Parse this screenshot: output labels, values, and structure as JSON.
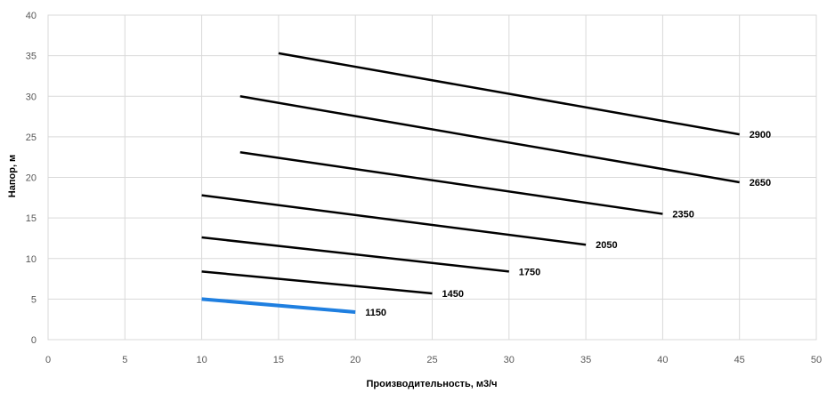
{
  "chart_data": {
    "type": "line",
    "xlabel": "Производительность, м3/ч",
    "ylabel": "Напор, м",
    "xlim": [
      0,
      50
    ],
    "ylim": [
      0,
      40
    ],
    "xticks": [
      0,
      5,
      10,
      15,
      20,
      25,
      30,
      35,
      40,
      45,
      50
    ],
    "yticks": [
      0,
      5,
      10,
      15,
      20,
      25,
      30,
      35,
      40
    ],
    "grid": true,
    "series": [
      {
        "name": "2900",
        "color": "#000000",
        "points": [
          [
            15,
            35.3
          ],
          [
            45,
            25.3
          ]
        ]
      },
      {
        "name": "2650",
        "color": "#000000",
        "points": [
          [
            12.5,
            30.0
          ],
          [
            45,
            19.4
          ]
        ]
      },
      {
        "name": "2350",
        "color": "#000000",
        "points": [
          [
            12.5,
            23.1
          ],
          [
            40,
            15.5
          ]
        ]
      },
      {
        "name": "2050",
        "color": "#000000",
        "points": [
          [
            10,
            17.8
          ],
          [
            35,
            11.7
          ]
        ]
      },
      {
        "name": "1750",
        "color": "#000000",
        "points": [
          [
            10,
            12.6
          ],
          [
            30,
            8.4
          ]
        ]
      },
      {
        "name": "1450",
        "color": "#000000",
        "points": [
          [
            10,
            8.4
          ],
          [
            25,
            5.7
          ]
        ]
      },
      {
        "name": "1150",
        "color": "#1f7fe0",
        "points": [
          [
            10,
            5.0
          ],
          [
            20,
            3.4
          ]
        ]
      }
    ]
  }
}
